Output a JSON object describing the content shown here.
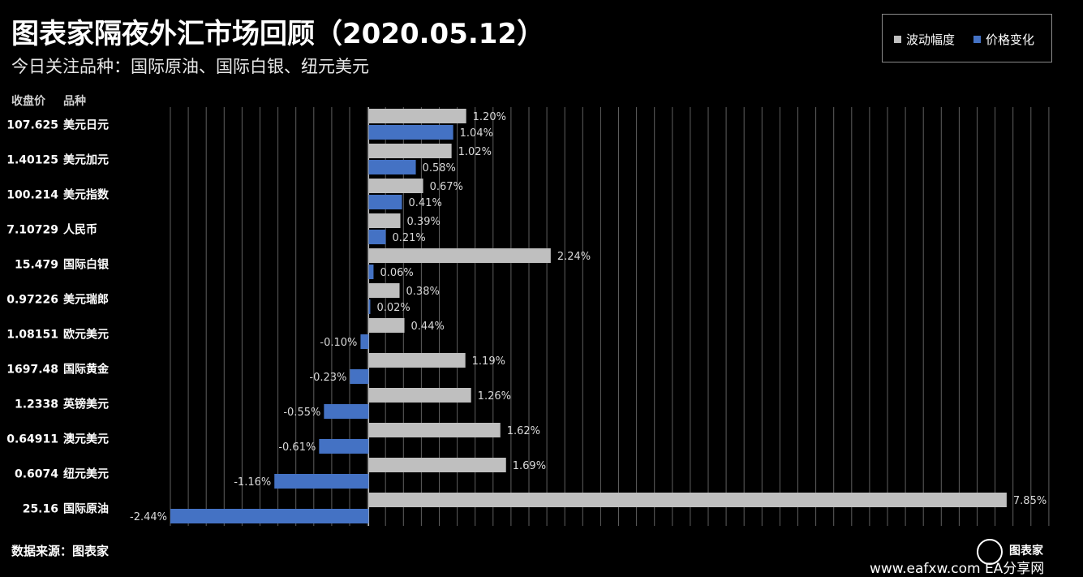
{
  "title": "图表家隔夜外汇市场回顾（2020.05.12）",
  "subtitle": "今日关注品种：国际原油、国际白银、纽元美元",
  "header": {
    "price_col": "收盘价",
    "name_col": "品种"
  },
  "footer": {
    "source": "数据来源：图表家",
    "watermark": "www.eafxw.com",
    "watermark2": "EA分享网",
    "brand": "图表家"
  },
  "colors": {
    "volatility": "#bfbfbf",
    "change": "#4472c4",
    "background": "#000000",
    "grid": "#7f7f7f"
  },
  "chart_data": {
    "type": "bar",
    "orientation": "horizontal",
    "categories": [
      "美元日元",
      "美元加元",
      "美元指数",
      "人民币",
      "国际白银",
      "美元瑞郎",
      "欧元美元",
      "国际黄金",
      "英镑美元",
      "澳元美元",
      "纽元美元",
      "国际原油"
    ],
    "closing_prices": [
      "107.625",
      "1.40125",
      "100.214",
      "7.10729",
      "15.479",
      "0.97226",
      "1.08151",
      "1697.48",
      "1.2338",
      "0.64911",
      "0.6074",
      "25.16"
    ],
    "series": [
      {
        "name": "波动幅度",
        "color": "#bfbfbf",
        "values": [
          1.2,
          1.02,
          0.67,
          0.39,
          2.24,
          0.38,
          0.44,
          1.19,
          1.26,
          1.62,
          1.69,
          7.85
        ],
        "labels": [
          "1.20%",
          "1.02%",
          "0.67%",
          "0.39%",
          "2.24%",
          "0.38%",
          "0.44%",
          "1.19%",
          "1.26%",
          "1.62%",
          "1.69%",
          "7.85%"
        ]
      },
      {
        "name": "价格变化",
        "color": "#4472c4",
        "values": [
          1.04,
          0.58,
          0.41,
          0.21,
          0.06,
          0.02,
          -0.1,
          -0.23,
          -0.55,
          -0.61,
          -1.16,
          -2.44
        ],
        "labels": [
          "1.04%",
          "0.58%",
          "0.41%",
          "0.21%",
          "0.06%",
          "0.02%",
          "-0.10%",
          "-0.23%",
          "-0.55%",
          "-0.61%",
          "-1.16%",
          "-2.44%"
        ]
      }
    ],
    "xlim": [
      -2.44,
      8.4
    ],
    "grid": true,
    "legend_position": "top-right"
  }
}
